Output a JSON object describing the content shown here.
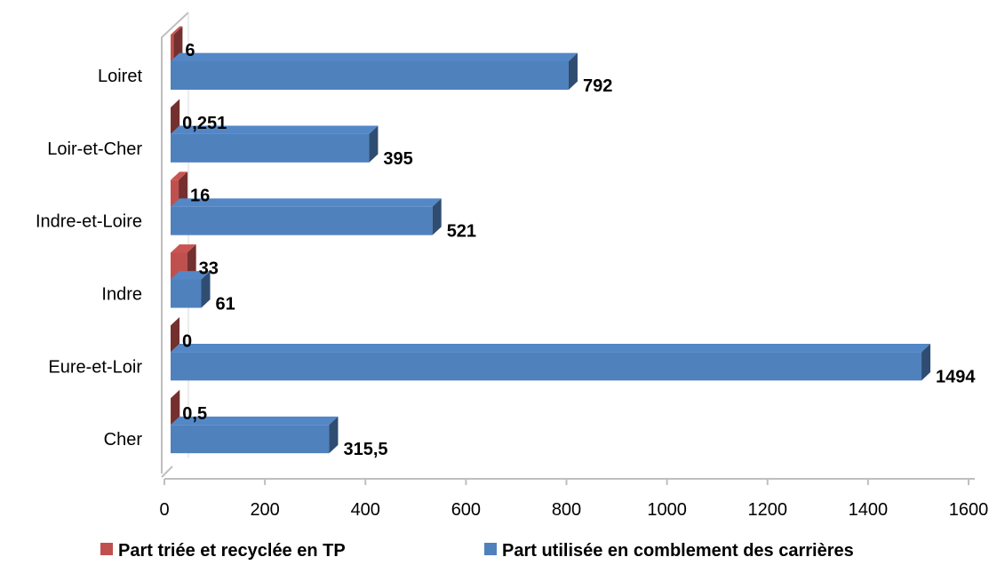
{
  "chart_data": {
    "type": "bar",
    "orientation": "horizontal",
    "style": "3d-clustered",
    "categories": [
      "Cher",
      "Eure-et-Loir",
      "Indre",
      "Indre-et-Loire",
      "Loir-et-Cher",
      "Loiret"
    ],
    "series": [
      {
        "name": "Part triée et recyclée en TP",
        "color": "#c0504d",
        "values": [
          0.5,
          0,
          33,
          16,
          0.251,
          6
        ],
        "labels": [
          "0,5",
          "0",
          "33",
          "16",
          "0,251",
          "6"
        ]
      },
      {
        "name": "Part utilisée en comblement des carrières",
        "color": "#4f81bd",
        "values": [
          315.5,
          1494,
          61,
          521,
          395,
          792
        ],
        "labels": [
          "315,5",
          "1494",
          "61",
          "521",
          "395",
          "792"
        ]
      }
    ],
    "x_ticks": [
      "0",
      "200",
      "400",
      "600",
      "800",
      "1000",
      "1200",
      "1400",
      "1600"
    ],
    "xlim": [
      0,
      1600
    ],
    "xlabel": "",
    "ylabel": "",
    "title": "",
    "grid": false,
    "legend_position": "bottom"
  }
}
